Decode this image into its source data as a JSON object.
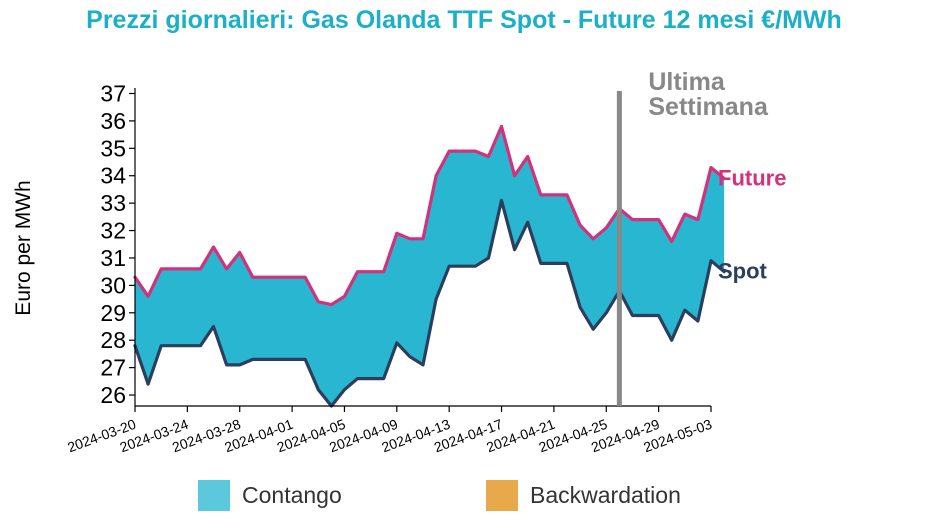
{
  "chart_data": {
    "type": "area",
    "title": "Prezzi giornalieri: Gas Olanda TTF Spot - Future 12 mesi €/MWh",
    "ylabel": "Euro per MWh",
    "xlabel": "",
    "ylim": [
      25.6,
      37.2
    ],
    "yticks": [
      26,
      27,
      28,
      29,
      30,
      31,
      32,
      33,
      34,
      35,
      36,
      37
    ],
    "xlim": [
      "2024-03-20",
      "2024-05-03"
    ],
    "xticks": [
      "2024-03-20",
      "2024-03-24",
      "2024-03-28",
      "2024-04-01",
      "2024-04-05",
      "2024-04-09",
      "2024-04-13",
      "2024-04-17",
      "2024-04-21",
      "2024-04-25",
      "2024-04-29",
      "2024-05-03"
    ],
    "annotation": {
      "line1": "Ultima",
      "line2": "Settimana",
      "date": "2024-04-26"
    },
    "legend": {
      "placement": "bottom",
      "items": [
        {
          "label": "Contango",
          "color": "#5BC8DC"
        },
        {
          "label": "Backwardation",
          "color": "#E8A94B"
        }
      ]
    },
    "fill_color": "#29B6D1",
    "title_color": "#1BAFC8",
    "series": [
      {
        "name": "Future",
        "color": "#D4317A",
        "points": [
          [
            "2024-03-20",
            30.3
          ],
          [
            "2024-03-21",
            29.6
          ],
          [
            "2024-03-22",
            30.6
          ],
          [
            "2024-03-25",
            30.6
          ],
          [
            "2024-03-26",
            31.4
          ],
          [
            "2024-03-27",
            30.6
          ],
          [
            "2024-03-28",
            31.2
          ],
          [
            "2024-03-29",
            30.3
          ],
          [
            "2024-04-02",
            30.3
          ],
          [
            "2024-04-03",
            29.4
          ],
          [
            "2024-04-04",
            29.3
          ],
          [
            "2024-04-05",
            29.6
          ],
          [
            "2024-04-06",
            30.5
          ],
          [
            "2024-04-08",
            30.5
          ],
          [
            "2024-04-09",
            31.9
          ],
          [
            "2024-04-10",
            31.7
          ],
          [
            "2024-04-11",
            31.7
          ],
          [
            "2024-04-12",
            34.0
          ],
          [
            "2024-04-13",
            34.9
          ],
          [
            "2024-04-15",
            34.9
          ],
          [
            "2024-04-16",
            34.7
          ],
          [
            "2024-04-17",
            35.8
          ],
          [
            "2024-04-18",
            34.0
          ],
          [
            "2024-04-19",
            34.7
          ],
          [
            "2024-04-20",
            33.3
          ],
          [
            "2024-04-22",
            33.3
          ],
          [
            "2024-04-23",
            32.2
          ],
          [
            "2024-04-24",
            31.7
          ],
          [
            "2024-04-25",
            32.1
          ],
          [
            "2024-04-26",
            32.8
          ],
          [
            "2024-04-27",
            32.4
          ],
          [
            "2024-04-29",
            32.4
          ],
          [
            "2024-04-30",
            31.6
          ],
          [
            "2024-05-01",
            32.6
          ],
          [
            "2024-05-02",
            32.4
          ],
          [
            "2024-05-03",
            34.3
          ],
          [
            "2024-05-04",
            33.9
          ]
        ]
      },
      {
        "name": "Spot",
        "color": "#2B3F5C",
        "points": [
          [
            "2024-03-20",
            27.8
          ],
          [
            "2024-03-21",
            26.4
          ],
          [
            "2024-03-22",
            27.8
          ],
          [
            "2024-03-25",
            27.8
          ],
          [
            "2024-03-26",
            28.5
          ],
          [
            "2024-03-27",
            27.1
          ],
          [
            "2024-03-28",
            27.1
          ],
          [
            "2024-03-29",
            27.3
          ],
          [
            "2024-04-02",
            27.3
          ],
          [
            "2024-04-03",
            26.2
          ],
          [
            "2024-04-04",
            25.6
          ],
          [
            "2024-04-05",
            26.2
          ],
          [
            "2024-04-06",
            26.6
          ],
          [
            "2024-04-08",
            26.6
          ],
          [
            "2024-04-09",
            27.9
          ],
          [
            "2024-04-10",
            27.4
          ],
          [
            "2024-04-11",
            27.1
          ],
          [
            "2024-04-12",
            29.5
          ],
          [
            "2024-04-13",
            30.7
          ],
          [
            "2024-04-15",
            30.7
          ],
          [
            "2024-04-16",
            31.0
          ],
          [
            "2024-04-17",
            33.1
          ],
          [
            "2024-04-18",
            31.3
          ],
          [
            "2024-04-19",
            32.3
          ],
          [
            "2024-04-20",
            30.8
          ],
          [
            "2024-04-22",
            30.8
          ],
          [
            "2024-04-23",
            29.2
          ],
          [
            "2024-04-24",
            28.4
          ],
          [
            "2024-04-25",
            29.0
          ],
          [
            "2024-04-26",
            29.8
          ],
          [
            "2024-04-27",
            28.9
          ],
          [
            "2024-04-29",
            28.9
          ],
          [
            "2024-04-30",
            28.0
          ],
          [
            "2024-05-01",
            29.1
          ],
          [
            "2024-05-02",
            28.7
          ],
          [
            "2024-05-03",
            30.9
          ],
          [
            "2024-05-04",
            30.5
          ]
        ]
      }
    ]
  }
}
